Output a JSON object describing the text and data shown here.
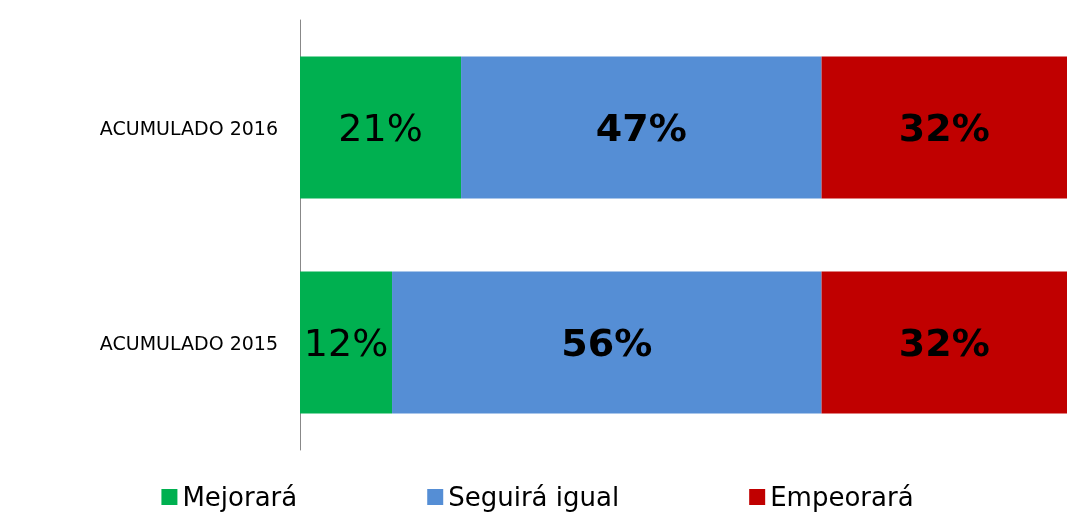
{
  "chart_data": {
    "type": "bar",
    "orientation": "horizontal",
    "stacked": true,
    "categories": [
      "ACUMULADO 2016",
      "ACUMULADO 2015"
    ],
    "series": [
      {
        "name": "Mejorará",
        "color": "#00b050",
        "values": [
          21,
          12
        ],
        "value_labels": [
          "21%",
          "12%"
        ]
      },
      {
        "name": "Seguirá igual",
        "color": "#558ed5",
        "values": [
          47,
          56
        ],
        "value_labels": [
          "47%",
          "56%"
        ]
      },
      {
        "name": "Empeorará",
        "color": "#c00000",
        "values": [
          32,
          32
        ],
        "value_labels": [
          "32%",
          "32%"
        ]
      }
    ],
    "legend": "bottom"
  }
}
